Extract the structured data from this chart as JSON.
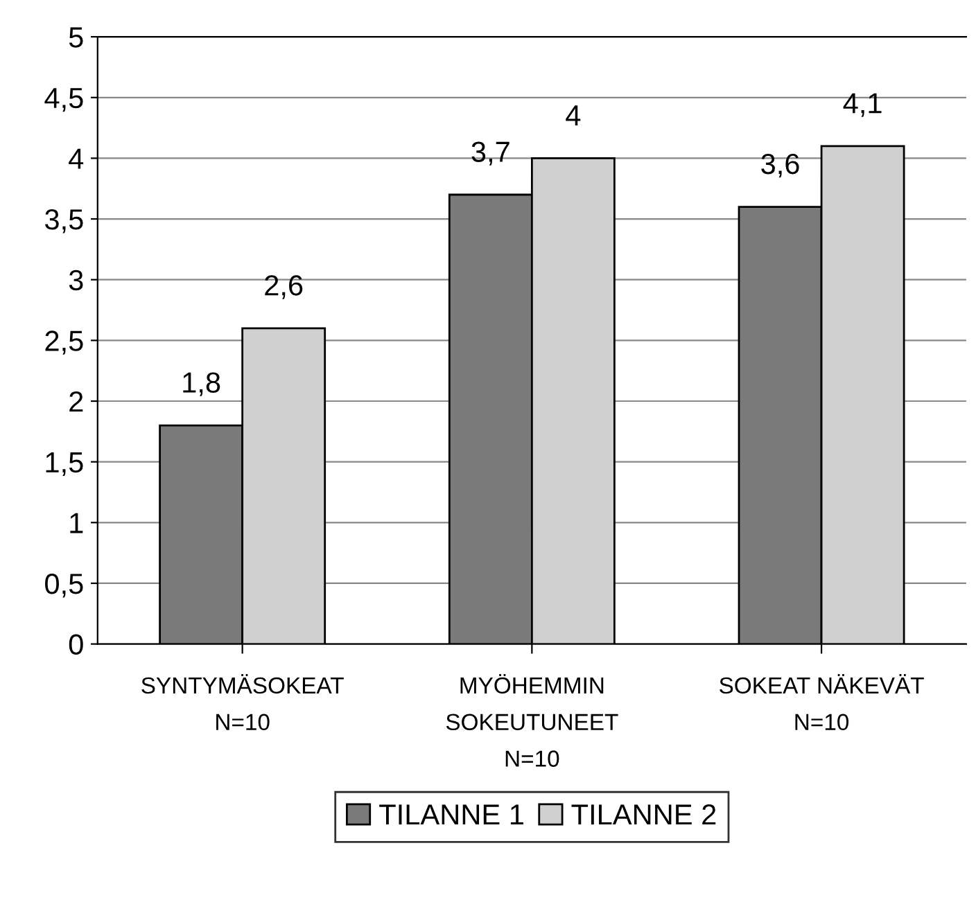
{
  "chart_data": {
    "type": "bar",
    "categories": [
      "SYNTYMÄSOKEAT\nN=10",
      "MYÖHEMMIN\nSOKEUTUNEET\nN=10",
      "SOKEAT NÄKEVÄT\nN=10"
    ],
    "series": [
      {
        "name": "TILANNE 1",
        "color": "#7a7a7a",
        "values": [
          1.8,
          3.7,
          3.6
        ],
        "value_labels": [
          "1,8",
          "3,7",
          "3,6"
        ]
      },
      {
        "name": "TILANNE 2",
        "color": "#d0d0d0",
        "values": [
          2.6,
          4,
          4.1
        ],
        "value_labels": [
          "2,6",
          "4",
          "4,1"
        ]
      }
    ],
    "ylim": [
      0,
      5
    ],
    "yticks": [
      0,
      {
        "value": 0.5,
        "label": "0,5"
      },
      1,
      {
        "value": 1.5,
        "label": "1,5"
      },
      2,
      {
        "value": 2.5,
        "label": "2,5"
      },
      3,
      {
        "value": 3.5,
        "label": "3,5"
      },
      4,
      {
        "value": 4.5,
        "label": "4,5"
      },
      5
    ],
    "grid": "y",
    "legend": "bottom"
  }
}
